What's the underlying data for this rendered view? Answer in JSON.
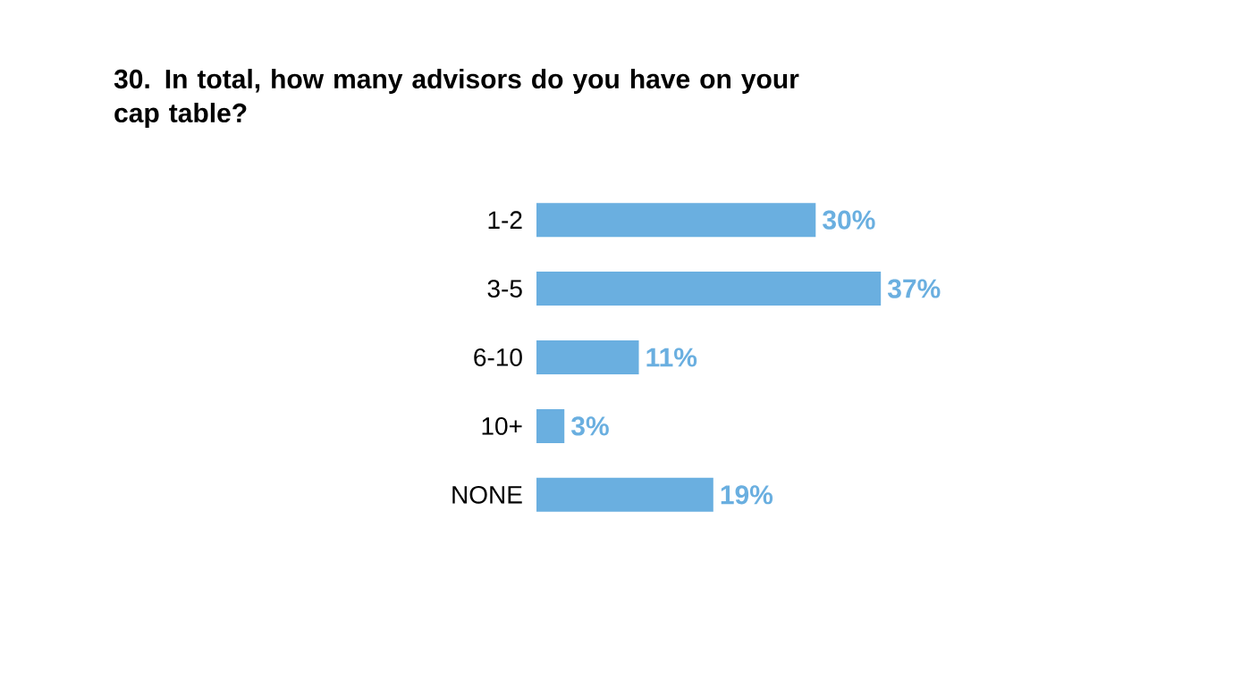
{
  "chart_data": {
    "type": "bar",
    "orientation": "horizontal",
    "title": "30. In total, how many advisors do you have on your cap table?",
    "categories": [
      "1-2",
      "3-5",
      "6-10",
      "10+",
      "NONE"
    ],
    "values": [
      30,
      37,
      11,
      3,
      19
    ],
    "value_labels": [
      "30%",
      "37%",
      "11%",
      "3%",
      "19%"
    ],
    "color": "#6aafe0"
  }
}
